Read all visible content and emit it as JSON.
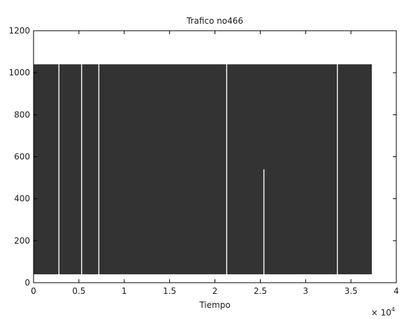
{
  "chart_data": {
    "type": "area",
    "title": "Trafico no466",
    "xlabel": "Tiempo",
    "ylabel": "",
    "x_scale_label": "× 10",
    "x_scale_exponent": "4",
    "xlim": [
      0,
      40000
    ],
    "ylim": [
      0,
      1200
    ],
    "x_ticks": [
      0,
      5000,
      10000,
      15000,
      20000,
      25000,
      30000,
      35000,
      40000
    ],
    "x_tick_labels": [
      "0",
      "0.5",
      "1",
      "1.5",
      "2",
      "2.5",
      "3",
      "3.5",
      "4"
    ],
    "y_ticks": [
      0,
      200,
      400,
      600,
      800,
      1000,
      1200
    ],
    "y_tick_labels": [
      "0",
      "200",
      "400",
      "600",
      "800",
      "1000",
      "1200"
    ],
    "grid": false,
    "fill_color": "#333333",
    "series": [
      {
        "x_start": 0,
        "x_end": 37300,
        "y_low": 40,
        "y_high": 1040,
        "gaps": [
          {
            "x": 2800,
            "y_low": 40,
            "y_high": 1040
          },
          {
            "x": 5300,
            "y_low": 40,
            "y_high": 1040
          },
          {
            "x": 7200,
            "y_low": 40,
            "y_high": 1040
          },
          {
            "x": 21300,
            "y_low": 40,
            "y_high": 1040
          },
          {
            "x": 25400,
            "y_low": 40,
            "y_high": 540
          },
          {
            "x": 33500,
            "y_low": 40,
            "y_high": 1040
          }
        ]
      }
    ]
  }
}
